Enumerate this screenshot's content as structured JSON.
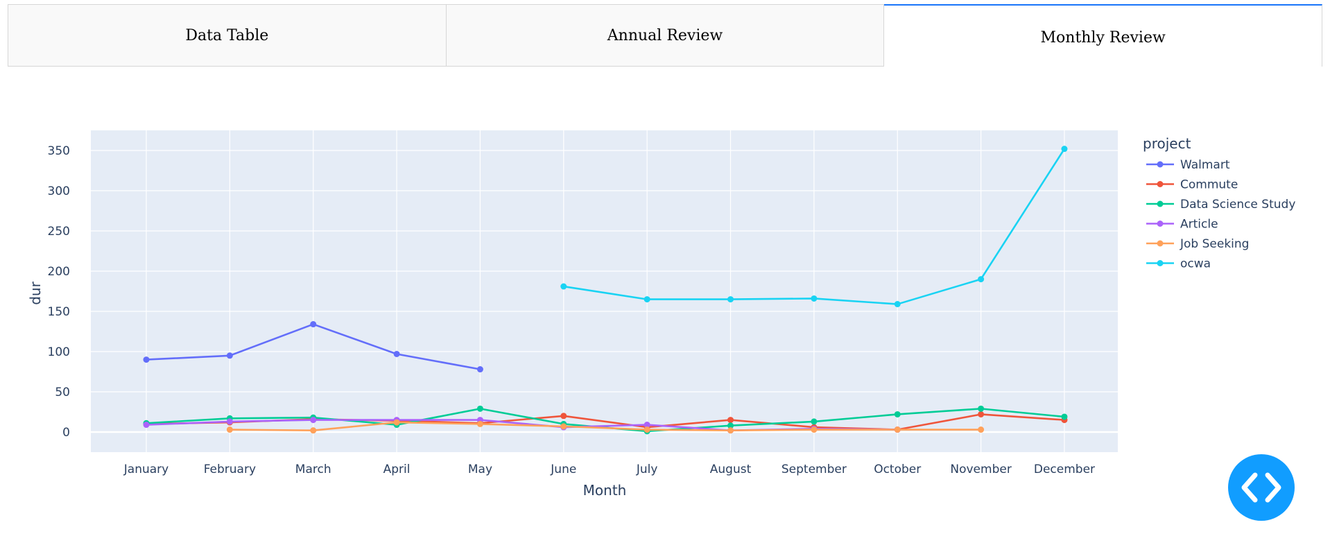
{
  "tabs": [
    {
      "label": "Data Table",
      "active": false
    },
    {
      "label": "Annual Review",
      "active": false
    },
    {
      "label": "Monthly Review",
      "active": true
    }
  ],
  "colors": {
    "tab_active_accent": "#1975fa",
    "plot_background": "#e5ecf6",
    "code_button": "#119dff"
  },
  "code_button": {
    "icon": "code-icon"
  },
  "chart_data": {
    "type": "line",
    "xlabel": "Month",
    "ylabel": "dur",
    "ylim": [
      -25,
      375
    ],
    "yticks": [
      0,
      50,
      100,
      150,
      200,
      250,
      300,
      350
    ],
    "categories": [
      "January",
      "February",
      "March",
      "April",
      "May",
      "June",
      "July",
      "August",
      "September",
      "October",
      "November",
      "December"
    ],
    "legend_title": "project",
    "legend_position": "right",
    "grid": true,
    "series": [
      {
        "name": "Walmart",
        "color": "#636efa",
        "values": [
          90,
          95,
          134,
          97,
          78,
          null,
          null,
          null,
          null,
          null,
          null,
          null
        ]
      },
      {
        "name": "Commute",
        "color": "#ef553b",
        "values": [
          10,
          12,
          16,
          14,
          11,
          20,
          6,
          15,
          6,
          3,
          22,
          15
        ]
      },
      {
        "name": "Data Science Study",
        "color": "#00cc96",
        "values": [
          11,
          17,
          18,
          9,
          29,
          10,
          1,
          8,
          13,
          22,
          29,
          19
        ]
      },
      {
        "name": "Article",
        "color": "#ab63fa",
        "values": [
          9,
          13,
          15,
          15,
          15,
          6,
          9,
          2,
          4,
          3,
          null,
          null
        ]
      },
      {
        "name": "Job Seeking",
        "color": "#ffa15a",
        "values": [
          null,
          3,
          2,
          12,
          10,
          7,
          3,
          2,
          3,
          3,
          3,
          null
        ]
      },
      {
        "name": "ocwa",
        "color": "#19d3f3",
        "values": [
          null,
          null,
          null,
          null,
          null,
          181,
          165,
          165,
          166,
          159,
          190,
          352
        ]
      }
    ]
  }
}
